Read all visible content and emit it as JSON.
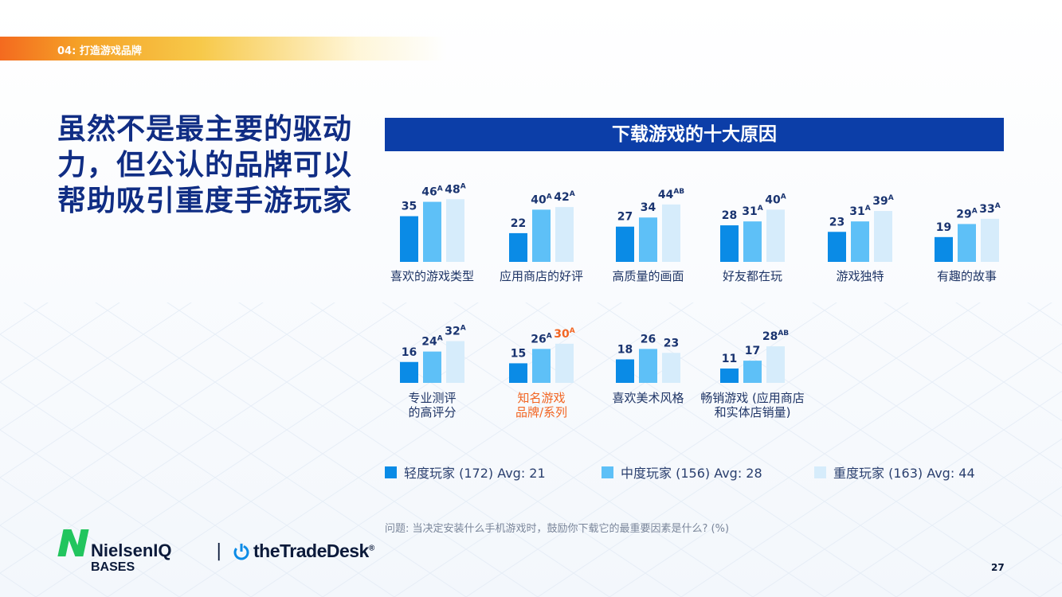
{
  "section": {
    "label": "04: 打造游戏品牌"
  },
  "headline": "虽然不是最主要的驱动力，但公认的品牌可以帮助吸引重度手游玩家",
  "chart_data": {
    "type": "bar",
    "title": "下载游戏的十大原因",
    "series": [
      {
        "name": "轻度玩家 (172) Avg: 21",
        "color": "#0a8be6"
      },
      {
        "name": "中度玩家 (156) Avg: 28",
        "color": "#5ec0f7"
      },
      {
        "name": "重度玩家 (163) Avg: 44",
        "color": "#d6ecfb"
      }
    ],
    "categories": [
      {
        "label": [
          "喜欢的游戏类型"
        ],
        "values": [
          35,
          46,
          48
        ],
        "sig": [
          "",
          "A",
          "A"
        ],
        "highlight": false
      },
      {
        "label": [
          "应用商店的好评"
        ],
        "values": [
          22,
          40,
          42
        ],
        "sig": [
          "",
          "A",
          "A"
        ],
        "highlight": false
      },
      {
        "label": [
          "高质量的画面"
        ],
        "values": [
          27,
          34,
          44
        ],
        "sig": [
          "",
          "",
          "AB"
        ],
        "highlight": false
      },
      {
        "label": [
          "好友都在玩"
        ],
        "values": [
          28,
          31,
          40
        ],
        "sig": [
          "",
          "A",
          "A"
        ],
        "highlight": false
      },
      {
        "label": [
          "游戏独特"
        ],
        "values": [
          23,
          31,
          39
        ],
        "sig": [
          "",
          "A",
          "A"
        ],
        "highlight": false
      },
      {
        "label": [
          "有趣的故事"
        ],
        "values": [
          19,
          29,
          33
        ],
        "sig": [
          "",
          "A",
          "A"
        ],
        "highlight": false
      },
      {
        "label": [
          "专业测评",
          "的高评分"
        ],
        "values": [
          16,
          24,
          32
        ],
        "sig": [
          "",
          "A",
          "A"
        ],
        "highlight": false
      },
      {
        "label": [
          "知名游戏",
          "品牌/系列"
        ],
        "values": [
          15,
          26,
          30
        ],
        "sig": [
          "",
          "A",
          "A"
        ],
        "highlight": true
      },
      {
        "label": [
          "喜欢美术风格"
        ],
        "values": [
          18,
          26,
          23
        ],
        "sig": [
          "",
          "",
          ""
        ],
        "highlight": false
      },
      {
        "label": [
          "畅销游戏 (应用商店",
          "和实体店销量)"
        ],
        "values": [
          11,
          17,
          28
        ],
        "sig": [
          "",
          "",
          "AB"
        ],
        "highlight": false
      }
    ]
  },
  "colors": {
    "accent_navy": "#102d84",
    "title_bar": "#0c3ea8",
    "highlight": "#f26522",
    "value_label": "#1a3470",
    "category_label": "#1f3566"
  },
  "question": "问题: 当决定安装什么手机游戏时，鼓励你下载它的最重要因素是什么? (%)",
  "footer": {
    "nielsen": "NielsenIQ",
    "nielsen_sub": "BASES",
    "separator": "|",
    "tradedesk": "theTradeDesk",
    "tradedesk_mark": "®",
    "page_number": "27"
  }
}
